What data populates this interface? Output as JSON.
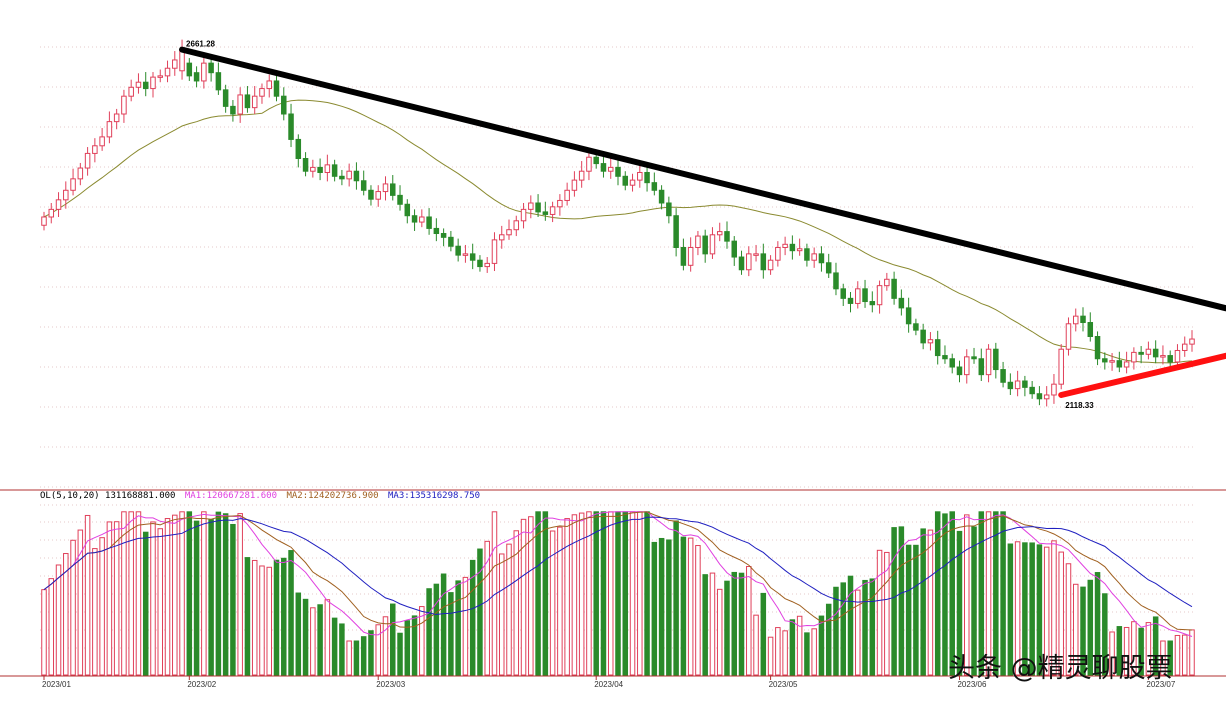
{
  "colors": {
    "up": "#e0405a",
    "down": "#2a8a2a",
    "ma_price": "#8a8a30",
    "ma1": "#e040e0",
    "ma2": "#a06020",
    "ma3": "#2020c0",
    "trend_upper": "#000000",
    "trend_lower": "#ff1010"
  },
  "volume_header": {
    "vol": "OL(5,10,20) 131168881.000",
    "ma1": "MA1:120667281.600",
    "ma2": "MA2:124202736.900",
    "ma3": "MA3:135316298.750"
  },
  "watermark": "头条 @精灵聊股票",
  "chart_data": {
    "type": "candlestick",
    "title": "",
    "xlabel": "",
    "ylabel": "",
    "ylim": [
      2000,
      2700
    ],
    "x_tick_labels": [
      "2023/01",
      "2023/02",
      "2023/03",
      "2023/04",
      "2023/05",
      "2023/06",
      "2023/07"
    ],
    "x_tick_index": [
      0,
      20,
      46,
      76,
      100,
      126,
      152
    ],
    "annotations": [
      {
        "label": "2661.28",
        "index": 19,
        "value": 2661.28
      },
      {
        "label": "2118.33",
        "index": 140,
        "value": 2118.33
      }
    ],
    "trendlines": [
      {
        "color": "trend_upper",
        "from": [
          19,
          2661.28
        ],
        "to": [
          172,
          2228
        ]
      },
      {
        "color": "trend_lower",
        "from": [
          140,
          2118
        ],
        "to": [
          172,
          2205
        ]
      }
    ],
    "candles_close": [
      2398,
      2410,
      2425,
      2440,
      2458,
      2475,
      2498,
      2510,
      2524,
      2548,
      2560,
      2588,
      2602,
      2610,
      2600,
      2618,
      2620,
      2632,
      2645,
      2661,
      2620,
      2612,
      2640,
      2625,
      2598,
      2572,
      2560,
      2590,
      2570,
      2588,
      2600,
      2612,
      2588,
      2560,
      2520,
      2490,
      2470,
      2476,
      2468,
      2480,
      2462,
      2458,
      2470,
      2455,
      2440,
      2426,
      2438,
      2450,
      2432,
      2418,
      2400,
      2390,
      2398,
      2380,
      2372,
      2366,
      2352,
      2338,
      2340,
      2330,
      2320,
      2325,
      2362,
      2370,
      2378,
      2392,
      2410,
      2420,
      2406,
      2402,
      2414,
      2424,
      2440,
      2456,
      2470,
      2492,
      2482,
      2470,
      2476,
      2462,
      2448,
      2456,
      2468,
      2452,
      2440,
      2420,
      2400,
      2350,
      2322,
      2350,
      2368,
      2340,
      2370,
      2375,
      2360,
      2335,
      2315,
      2340,
      2340,
      2315,
      2330,
      2350,
      2355,
      2345,
      2348,
      2330,
      2340,
      2326,
      2310,
      2285,
      2270,
      2262,
      2285,
      2265,
      2260,
      2290,
      2300,
      2270,
      2255,
      2230,
      2220,
      2200,
      2205,
      2180,
      2175,
      2162,
      2150,
      2178,
      2175,
      2150,
      2190,
      2158,
      2138,
      2128,
      2140,
      2130,
      2120,
      2112,
      2118,
      2135,
      2190,
      2230,
      2242,
      2232,
      2210,
      2175,
      2170,
      2172,
      2162,
      2170,
      2185,
      2182,
      2190,
      2178,
      2180,
      2170,
      2188,
      2198,
      2206
    ],
    "candles_open": [
      2385,
      2398,
      2410,
      2425,
      2440,
      2458,
      2475,
      2498,
      2510,
      2524,
      2548,
      2560,
      2588,
      2602,
      2610,
      2600,
      2618,
      2620,
      2632,
      2628,
      2640,
      2625,
      2612,
      2640,
      2625,
      2598,
      2572,
      2560,
      2590,
      2570,
      2588,
      2600,
      2612,
      2588,
      2560,
      2520,
      2490,
      2470,
      2476,
      2468,
      2480,
      2462,
      2458,
      2470,
      2455,
      2440,
      2426,
      2438,
      2450,
      2432,
      2418,
      2400,
      2390,
      2398,
      2380,
      2372,
      2366,
      2352,
      2338,
      2340,
      2330,
      2320,
      2325,
      2362,
      2370,
      2378,
      2392,
      2410,
      2420,
      2406,
      2402,
      2414,
      2424,
      2440,
      2456,
      2470,
      2492,
      2482,
      2470,
      2476,
      2462,
      2448,
      2456,
      2468,
      2452,
      2440,
      2420,
      2400,
      2350,
      2322,
      2350,
      2368,
      2340,
      2370,
      2375,
      2360,
      2335,
      2315,
      2340,
      2340,
      2315,
      2330,
      2350,
      2355,
      2345,
      2348,
      2330,
      2340,
      2326,
      2310,
      2285,
      2270,
      2262,
      2285,
      2265,
      2260,
      2290,
      2300,
      2270,
      2255,
      2230,
      2220,
      2200,
      2205,
      2180,
      2175,
      2162,
      2150,
      2178,
      2175,
      2150,
      2190,
      2158,
      2138,
      2128,
      2140,
      2130,
      2120,
      2112,
      2118,
      2135,
      2190,
      2230,
      2242,
      2232,
      2210,
      2175,
      2170,
      2172,
      2162,
      2170,
      2185,
      2182,
      2190,
      2178,
      2180,
      2170,
      2188,
      2198
    ],
    "volume_units": "relative",
    "volume_ylim": [
      0,
      100
    ]
  }
}
